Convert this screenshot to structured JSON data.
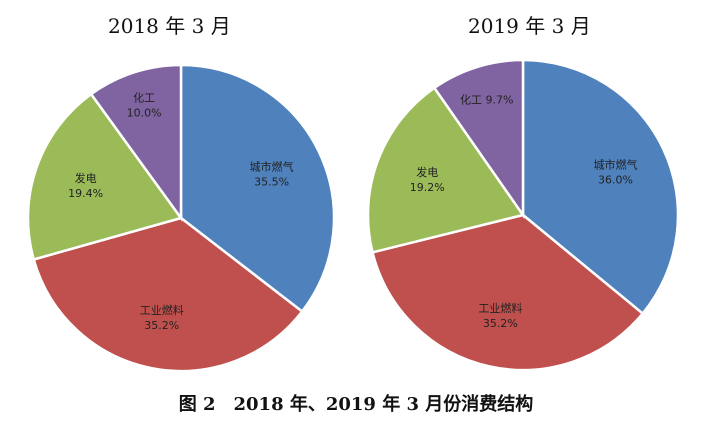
{
  "figure_caption": "图 2　2018 年、2019 年 3 月份消费结构",
  "chart_data": [
    {
      "type": "pie",
      "title": "2018 年 3 月",
      "slices": [
        {
          "label": "城市燃气",
          "value": 35.5,
          "value_label": "35.5%",
          "color": "#4f81bd"
        },
        {
          "label": "工业燃料",
          "value": 35.2,
          "value_label": "35.2%",
          "color": "#c0504d"
        },
        {
          "label": "发电",
          "value": 19.4,
          "value_label": "19.4%",
          "color": "#9bbb59"
        },
        {
          "label": "化工",
          "value": 10.0,
          "value_label": "10.0%",
          "color": "#8064a2"
        }
      ]
    },
    {
      "type": "pie",
      "title": "2019 年 3 月",
      "slices": [
        {
          "label": "城市燃气",
          "value": 36.0,
          "value_label": "36.0%",
          "color": "#4f81bd"
        },
        {
          "label": "工业燃料",
          "value": 35.2,
          "value_label": "35.2%",
          "color": "#c0504d"
        },
        {
          "label": "发电",
          "value": 19.2,
          "value_label": "19.2%",
          "color": "#9bbb59"
        },
        {
          "label": "化工",
          "value": 9.7,
          "value_label": "9.7%",
          "color": "#8064a2"
        }
      ]
    }
  ]
}
